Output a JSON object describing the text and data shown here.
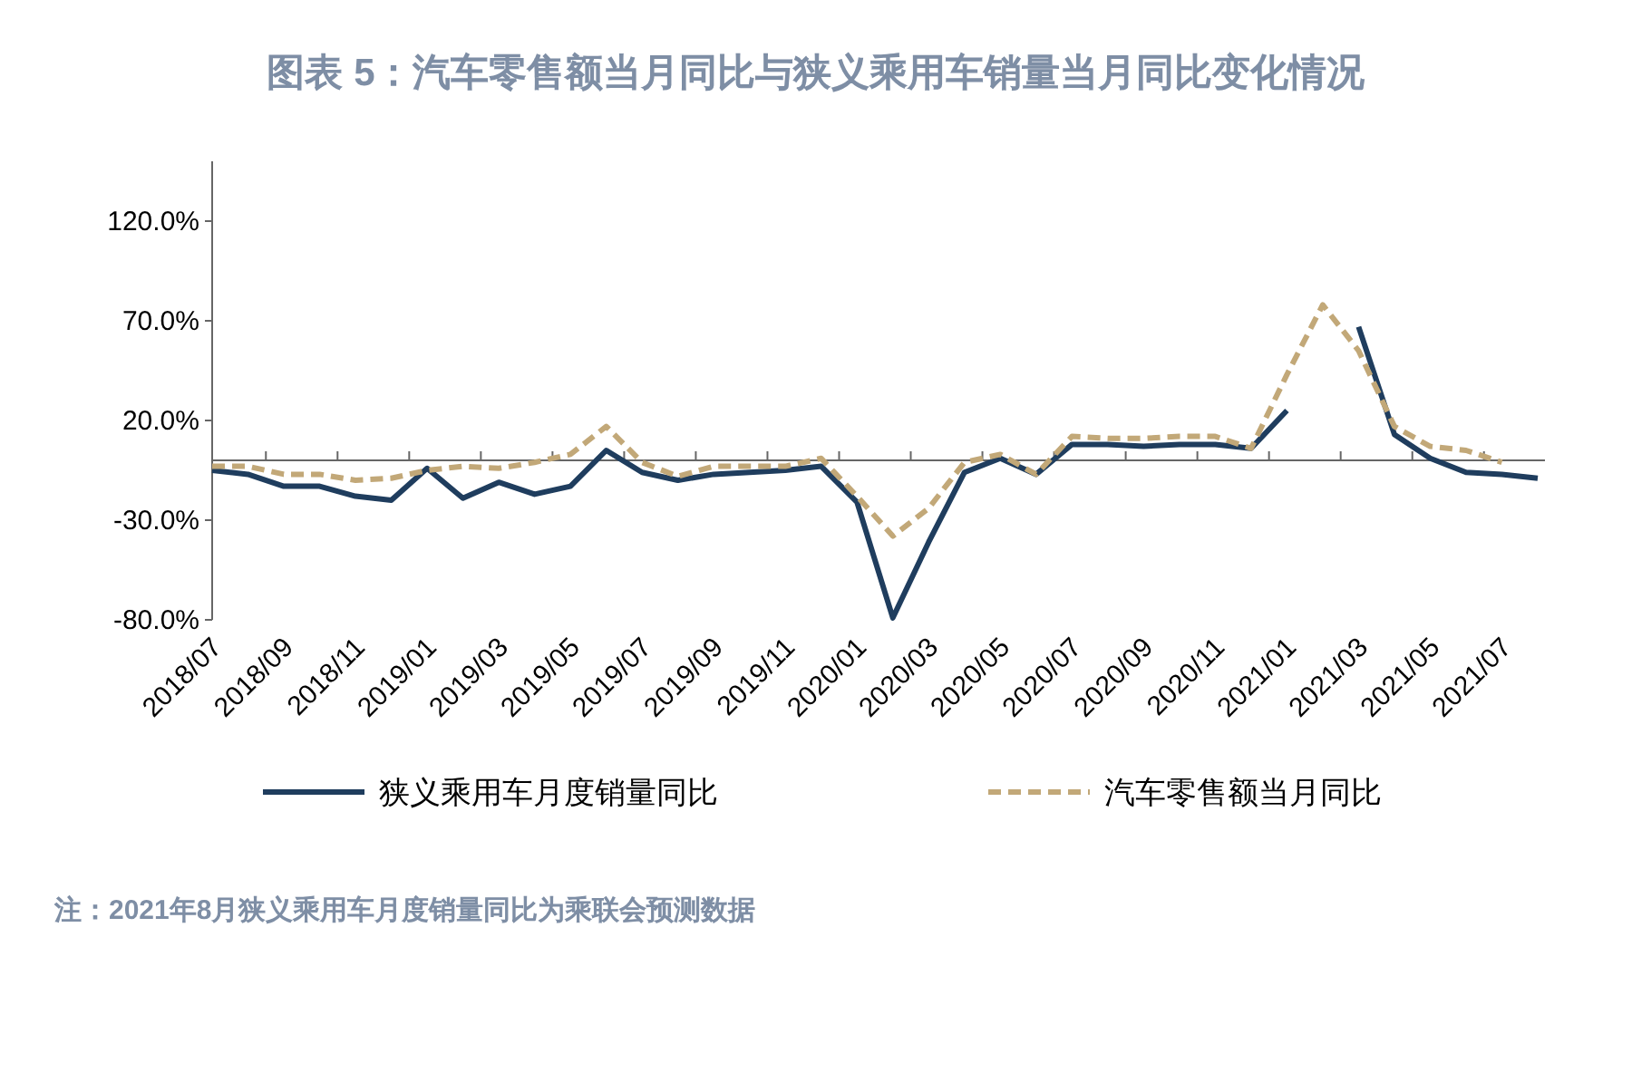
{
  "chart_data": {
    "type": "line",
    "title": "图表 5：汽车零售额当月同比与狭义乘用车销量当月同比变化情况",
    "categories": [
      "2018/07",
      null,
      "2018/09",
      null,
      "2018/11",
      null,
      "2019/01",
      null,
      "2019/03",
      null,
      "2019/05",
      null,
      "2019/07",
      null,
      "2019/09",
      null,
      "2019/11",
      null,
      "2020/01",
      null,
      "2020/03",
      null,
      "2020/05",
      null,
      "2020/07",
      null,
      "2020/09",
      null,
      "2020/11",
      null,
      "2021/01",
      null,
      "2021/03",
      null,
      "2021/05",
      null,
      "2021/07",
      null
    ],
    "series": [
      {
        "name": "狭义乘用车月度销量同比",
        "color": "#1f3d5e",
        "line_style": "solid",
        "values": [
          -5,
          -7,
          -13,
          -13,
          -18,
          -20,
          -4,
          -19,
          -11,
          -17,
          -13,
          5,
          -6,
          -10,
          -7,
          -6,
          -5,
          -3,
          -21,
          -79,
          -41,
          -6,
          1,
          -7,
          8,
          8,
          7,
          8,
          8,
          6,
          25,
          null,
          67,
          13,
          1,
          -6,
          -7,
          -9
        ]
      },
      {
        "name": "汽车零售额当月同比",
        "color": "#c2a878",
        "line_style": "dashed",
        "values": [
          -3,
          -3,
          -7,
          -7,
          -10,
          -9,
          -5,
          -3,
          -4,
          -1,
          3,
          17,
          -1,
          -8,
          -3,
          -3,
          -3,
          1,
          -18,
          -38,
          -24,
          -1,
          3,
          -7,
          12,
          11,
          11,
          12,
          12,
          6,
          43,
          78,
          55,
          17,
          7,
          5,
          -1,
          null
        ]
      }
    ],
    "ylim": [
      -80,
      150
    ],
    "yticks": [
      {
        "value": -80,
        "label": "-80.0%"
      },
      {
        "value": -30,
        "label": "-30.0%"
      },
      {
        "value": 20,
        "label": "20.0%"
      },
      {
        "value": 70,
        "label": "70.0%"
      },
      {
        "value": 120,
        "label": "120.0%"
      }
    ],
    "grid": false,
    "legend": "bottom",
    "annotations": [
      "注：2021年8月狭义乘用车月度销量同比为乘联会预测数据"
    ]
  }
}
